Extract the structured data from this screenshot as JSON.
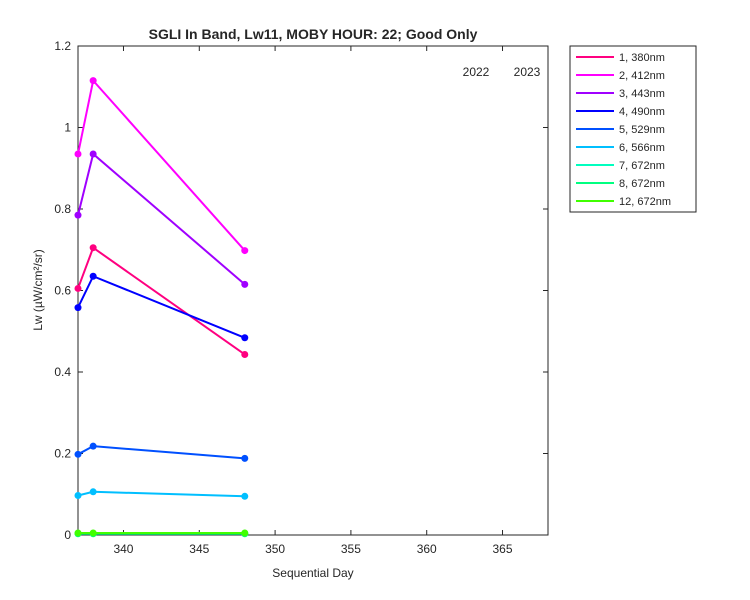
{
  "chart_data": {
    "type": "line",
    "title": "SGLI In Band,  Lw11, MOBY HOUR: 22;  Good Only",
    "xlabel": "Sequential Day",
    "ylabel": "Lw (µW/cm²/sr)",
    "xlim": [
      337,
      368
    ],
    "ylim": [
      0,
      1.2
    ],
    "xticks": [
      340,
      345,
      350,
      355,
      360,
      365
    ],
    "yticks": [
      0,
      0.2,
      0.4,
      0.6,
      0.8,
      1,
      1.2
    ],
    "grid": false,
    "legend_position": "outside-right-top",
    "year_labels": [
      "2022",
      "2023"
    ],
    "x": [
      337,
      338,
      348
    ],
    "series": [
      {
        "name": "1, 380nm",
        "color": "#ff0080",
        "values": [
          0.605,
          0.705,
          0.443
        ]
      },
      {
        "name": "2, 412nm",
        "color": "#ff00ff",
        "values": [
          0.935,
          1.115,
          0.698
        ]
      },
      {
        "name": "3, 443nm",
        "color": "#a000ff",
        "values": [
          0.785,
          0.935,
          0.615
        ]
      },
      {
        "name": "4, 490nm",
        "color": "#0000ff",
        "values": [
          0.558,
          0.635,
          0.484
        ]
      },
      {
        "name": "5, 529nm",
        "color": "#0050ff",
        "values": [
          0.198,
          0.218,
          0.188
        ]
      },
      {
        "name": "6, 566nm",
        "color": "#00bfff",
        "values": [
          0.097,
          0.106,
          0.095
        ]
      },
      {
        "name": "7, 672nm",
        "color": "#00ffbf",
        "values": [
          0.004,
          0.004,
          0.004
        ]
      },
      {
        "name": "8, 672nm",
        "color": "#00ff80",
        "values": [
          0.003,
          0.003,
          0.003
        ]
      },
      {
        "name": "12, 672nm",
        "color": "#40ff00",
        "values": [
          0.005,
          0.005,
          0.005
        ]
      }
    ]
  }
}
